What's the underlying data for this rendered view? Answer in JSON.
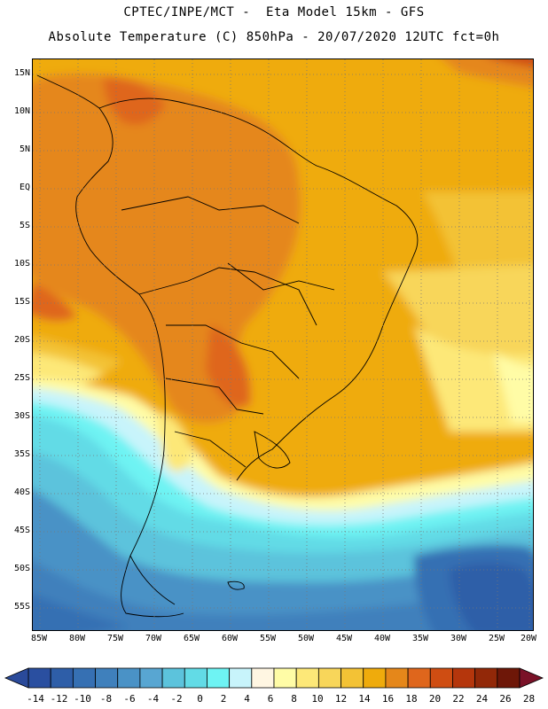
{
  "header": {
    "line1": "CPTEC/INPE/MCT -  Eta Model 15km - GFS",
    "line2": "Absolute Temperature (C) 850hPa - 20/07/2020 12UTC fct=0h"
  },
  "map": {
    "lat_labels": [
      "15N",
      "10N",
      "5N",
      "EQ",
      "5S",
      "10S",
      "15S",
      "20S",
      "25S",
      "30S",
      "35S",
      "40S",
      "45S",
      "50S",
      "55S"
    ],
    "lon_labels": [
      "85W",
      "80W",
      "75W",
      "70W",
      "65W",
      "60W",
      "55W",
      "50W",
      "45W",
      "40W",
      "35W",
      "30W",
      "25W",
      "20W"
    ],
    "grid": "dotted"
  },
  "colorbar": {
    "labels": [
      "-14",
      "-12",
      "-10",
      "-8",
      "-6",
      "-4",
      "-2",
      "0",
      "2",
      "4",
      "6",
      "8",
      "10",
      "12",
      "14",
      "16",
      "18",
      "20",
      "22",
      "24",
      "26",
      "28"
    ],
    "colors": [
      "#2a4fa0",
      "#2e5ea8",
      "#3670b3",
      "#3f80bc",
      "#4a92c6",
      "#58a6d2",
      "#5cc3dc",
      "#62dbe6",
      "#6ef3f3",
      "#c8f4fb",
      "#fff6e2",
      "#fffca6",
      "#fde878",
      "#f8d65a",
      "#f3c235",
      "#efab0c",
      "#e5871a",
      "#df661c",
      "#cf4d12",
      "#b5360c",
      "#922808",
      "#6e1708"
    ],
    "under_color": "#2a4a9a",
    "over_color": "#7a1228"
  }
}
